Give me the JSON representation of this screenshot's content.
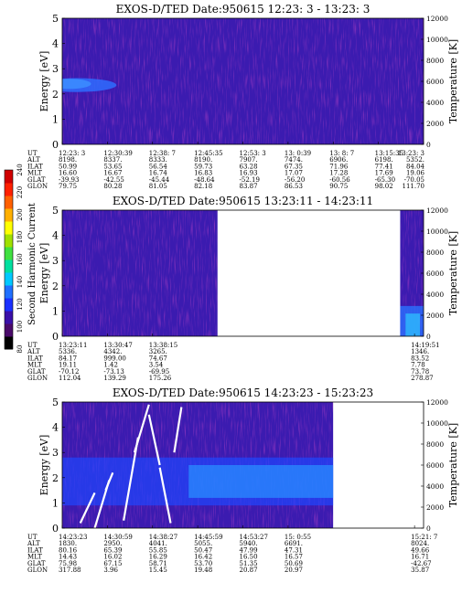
{
  "chart_data": [
    {
      "type": "heatmap",
      "title": "EXOS-D/TED   Date:950615  12:23: 3 - 13:23: 3",
      "ylabel": "Energy [eV]",
      "y2label": "Temperature [K]",
      "ylim": [
        0,
        5
      ],
      "y2lim": [
        0,
        12000
      ],
      "yticks": [
        "0",
        "1",
        "2",
        "3",
        "4",
        "5"
      ],
      "y2ticks": [
        "0",
        "2000",
        "4000",
        "6000",
        "8000",
        "10000",
        "12000"
      ],
      "coverage": [
        [
          0,
          1
        ]
      ],
      "row_labels": [
        "UT",
        "ALT",
        "ILAT",
        "MLT",
        "GLAT",
        "GLON"
      ],
      "columns": [
        {
          "x": 0.0,
          "UT": "12:23: 3",
          "ALT": "8198.",
          "ILAT": "50.99",
          "MLT": "16.60",
          "GLAT": "-39.93",
          "GLON": "79.75"
        },
        {
          "x": 0.125,
          "UT": "12:30:39",
          "ALT": "8337.",
          "ILAT": "53.65",
          "MLT": "16.67",
          "GLAT": "-42.55",
          "GLON": "80.28"
        },
        {
          "x": 0.25,
          "UT": "12:38: 7",
          "ALT": "8333.",
          "ILAT": "56.54",
          "MLT": "16.74",
          "GLAT": "-45.44",
          "GLON": "81.05"
        },
        {
          "x": 0.375,
          "UT": "12:45:35",
          "ALT": "8190.",
          "ILAT": "59.73",
          "MLT": "16.83",
          "GLAT": "-48.64",
          "GLON": "82.18"
        },
        {
          "x": 0.5,
          "UT": "12:53: 3",
          "ALT": "7907.",
          "ILAT": "63.28",
          "MLT": "16.93",
          "GLAT": "-52.19",
          "GLON": "83.87"
        },
        {
          "x": 0.625,
          "UT": "13: 0:39",
          "ALT": "7474.",
          "ILAT": "67.35",
          "MLT": "17.07",
          "GLAT": "-56.20",
          "GLON": "86.53"
        },
        {
          "x": 0.75,
          "UT": "13: 8: 7",
          "ALT": "6906.",
          "ILAT": "71.96",
          "MLT": "17.28",
          "GLAT": "-60.56",
          "GLON": "90.75"
        },
        {
          "x": 0.875,
          "UT": "13:15:35",
          "ALT": "6198.",
          "ILAT": "77.41",
          "MLT": "17.69",
          "GLAT": "-65.30",
          "GLON": "98.02"
        },
        {
          "x": 1.0,
          "UT": "13:23: 3",
          "ALT": "5352.",
          "ILAT": "84.04",
          "MLT": "19.06",
          "GLAT": "-70.05",
          "GLON": "111.70"
        }
      ]
    },
    {
      "type": "heatmap",
      "title": "EXOS-D/TED   Date:950615  13:23:11 - 14:23:11",
      "ylabel": "Energy [eV]",
      "y2label": "Temperature [K]",
      "ylim": [
        0,
        5
      ],
      "y2lim": [
        0,
        12000
      ],
      "yticks": [
        "0",
        "1",
        "2",
        "3",
        "4",
        "5"
      ],
      "y2ticks": [
        "0",
        "2000",
        "4000",
        "6000",
        "8000",
        "10000",
        "12000"
      ],
      "coverage": [
        [
          0,
          0.43
        ],
        [
          0.935,
          1
        ]
      ],
      "row_labels": [
        "UT",
        "ALT",
        "ILAT",
        "MLT",
        "GLAT",
        "GLON"
      ],
      "columns": [
        {
          "x": 0.0,
          "UT": "13:23:11",
          "ALT": "5336.",
          "ILAT": "84.17",
          "MLT": "19.11",
          "GLAT": "-70.12",
          "GLON": "112.04"
        },
        {
          "x": 0.125,
          "UT": "13:30:47",
          "ALT": "4342.",
          "ILAT": "999.00",
          "MLT": "1.42",
          "GLAT": "-73.13",
          "GLON": "139.29"
        },
        {
          "x": 0.25,
          "UT": "13:38:15",
          "ALT": "3265.",
          "ILAT": "74.67",
          "MLT": "3.54",
          "GLAT": "-69.95",
          "GLON": "175.26"
        },
        {
          "x": 0.975,
          "UT": "14:19:51",
          "ALT": "1346.",
          "ILAT": "83.52",
          "MLT": "7.78",
          "GLAT": "73.78",
          "GLON": "278.87"
        }
      ]
    },
    {
      "type": "heatmap",
      "title": "EXOS-D/TED   Date:950615  14:23:23 - 15:23:23",
      "ylabel": "Energy [eV]",
      "y2label": "Temperature [K]",
      "ylim": [
        0,
        5
      ],
      "y2lim": [
        0,
        12000
      ],
      "yticks": [
        "0",
        "1",
        "2",
        "3",
        "4",
        "5"
      ],
      "y2ticks": [
        "0",
        "2000",
        "4000",
        "6000",
        "8000",
        "10000",
        "12000"
      ],
      "coverage": [
        [
          0,
          0.75
        ]
      ],
      "row_labels": [
        "UT",
        "ALT",
        "ILAT",
        "MLT",
        "GLAT",
        "GLON"
      ],
      "columns": [
        {
          "x": 0.0,
          "UT": "14:23:23",
          "ALT": "1830.",
          "ILAT": "80.16",
          "MLT": "14.43",
          "GLAT": "75.98",
          "GLON": "317.88"
        },
        {
          "x": 0.125,
          "UT": "14:30:59",
          "ALT": "2950.",
          "ILAT": "65.39",
          "MLT": "16.02",
          "GLAT": "67.15",
          "GLON": "3.96"
        },
        {
          "x": 0.25,
          "UT": "14:38:27",
          "ALT": "4041.",
          "ILAT": "55.85",
          "MLT": "16.29",
          "GLAT": "58.71",
          "GLON": "15.45"
        },
        {
          "x": 0.375,
          "UT": "14:45:59",
          "ALT": "5055.",
          "ILAT": "50.47",
          "MLT": "16.42",
          "GLAT": "53.70",
          "GLON": "19.48"
        },
        {
          "x": 0.5,
          "UT": "14:53:27",
          "ALT": "5940.",
          "ILAT": "47.99",
          "MLT": "16.50",
          "GLAT": "51.35",
          "GLON": "20.87"
        },
        {
          "x": 0.625,
          "UT": "15: 0:55",
          "ALT": "6691.",
          "ILAT": "47.31",
          "MLT": "16.57",
          "GLAT": "50.69",
          "GLON": "20.97"
        },
        {
          "x": 0.975,
          "UT": "15:21: 7",
          "ALT": "8024.",
          "ILAT": "49.66",
          "MLT": "16.71",
          "GLAT": "-42.67",
          "GLON": "35.87"
        }
      ]
    }
  ],
  "colorbar": {
    "label": "Second Harmonic Current",
    "ticks": [
      "80",
      "100",
      "120",
      "140",
      "160",
      "180",
      "200",
      "220",
      "240"
    ],
    "colors": [
      "#000000",
      "#4a0a6a",
      "#3a10a8",
      "#1a30ff",
      "#2070ff",
      "#00c8ff",
      "#00e0a0",
      "#40e040",
      "#a0e000",
      "#ffff00",
      "#ffb000",
      "#ff6000",
      "#ff2000",
      "#d00000"
    ]
  }
}
